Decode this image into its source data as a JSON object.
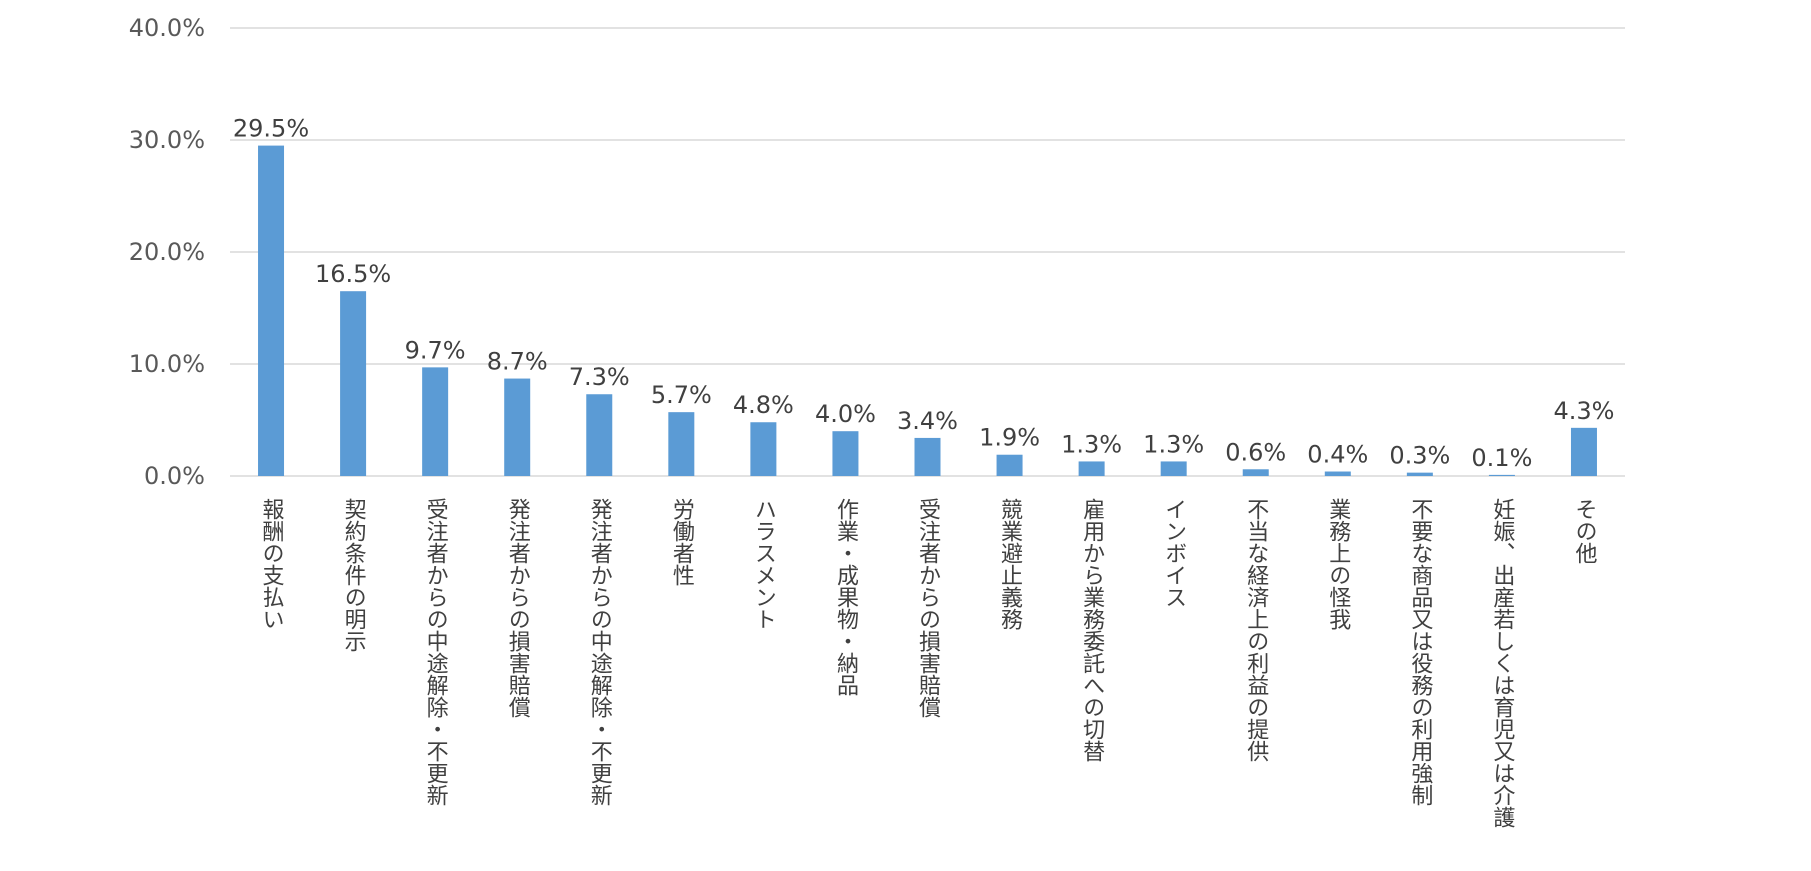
{
  "chart_data": {
    "type": "bar",
    "title": "",
    "xlabel": "",
    "ylabel": "",
    "ylim": [
      0,
      40
    ],
    "y_tick_values": [
      0,
      10,
      20,
      30,
      40
    ],
    "y_tick_labels": [
      "0.0%",
      "10.0%",
      "20.0%",
      "30.0%",
      "40.0%"
    ],
    "grid": true,
    "legend": "none",
    "bar_color": "#5b9bd5",
    "categories": [
      "報酬の支払い",
      "契約条件の明示",
      "受注者からの中途解除・不更新",
      "発注者からの損害賠償",
      "発注者からの中途解除・不更新",
      "労働者性",
      "ハラスメント",
      "作業・成果物・納品",
      "受注者からの損害賠償",
      "競業避止義務",
      "雇用から業務委託への切替",
      "インボイス",
      "不当な経済上の利益の提供",
      "業務上の怪我",
      "不要な商品又は役務の利用強制",
      "妊娠、出産若しくは育児又は介護",
      "その他"
    ],
    "values": [
      29.5,
      16.5,
      9.7,
      8.7,
      7.3,
      5.7,
      4.8,
      4.0,
      3.4,
      1.9,
      1.3,
      1.3,
      0.6,
      0.4,
      0.3,
      0.1,
      4.3
    ],
    "data_labels": [
      "29.5%",
      "16.5%",
      "9.7%",
      "8.7%",
      "7.3%",
      "5.7%",
      "4.8%",
      "4.0%",
      "3.4%",
      "1.9%",
      "1.3%",
      "1.3%",
      "0.6%",
      "0.4%",
      "0.3%",
      "0.1%",
      "4.3%"
    ]
  }
}
